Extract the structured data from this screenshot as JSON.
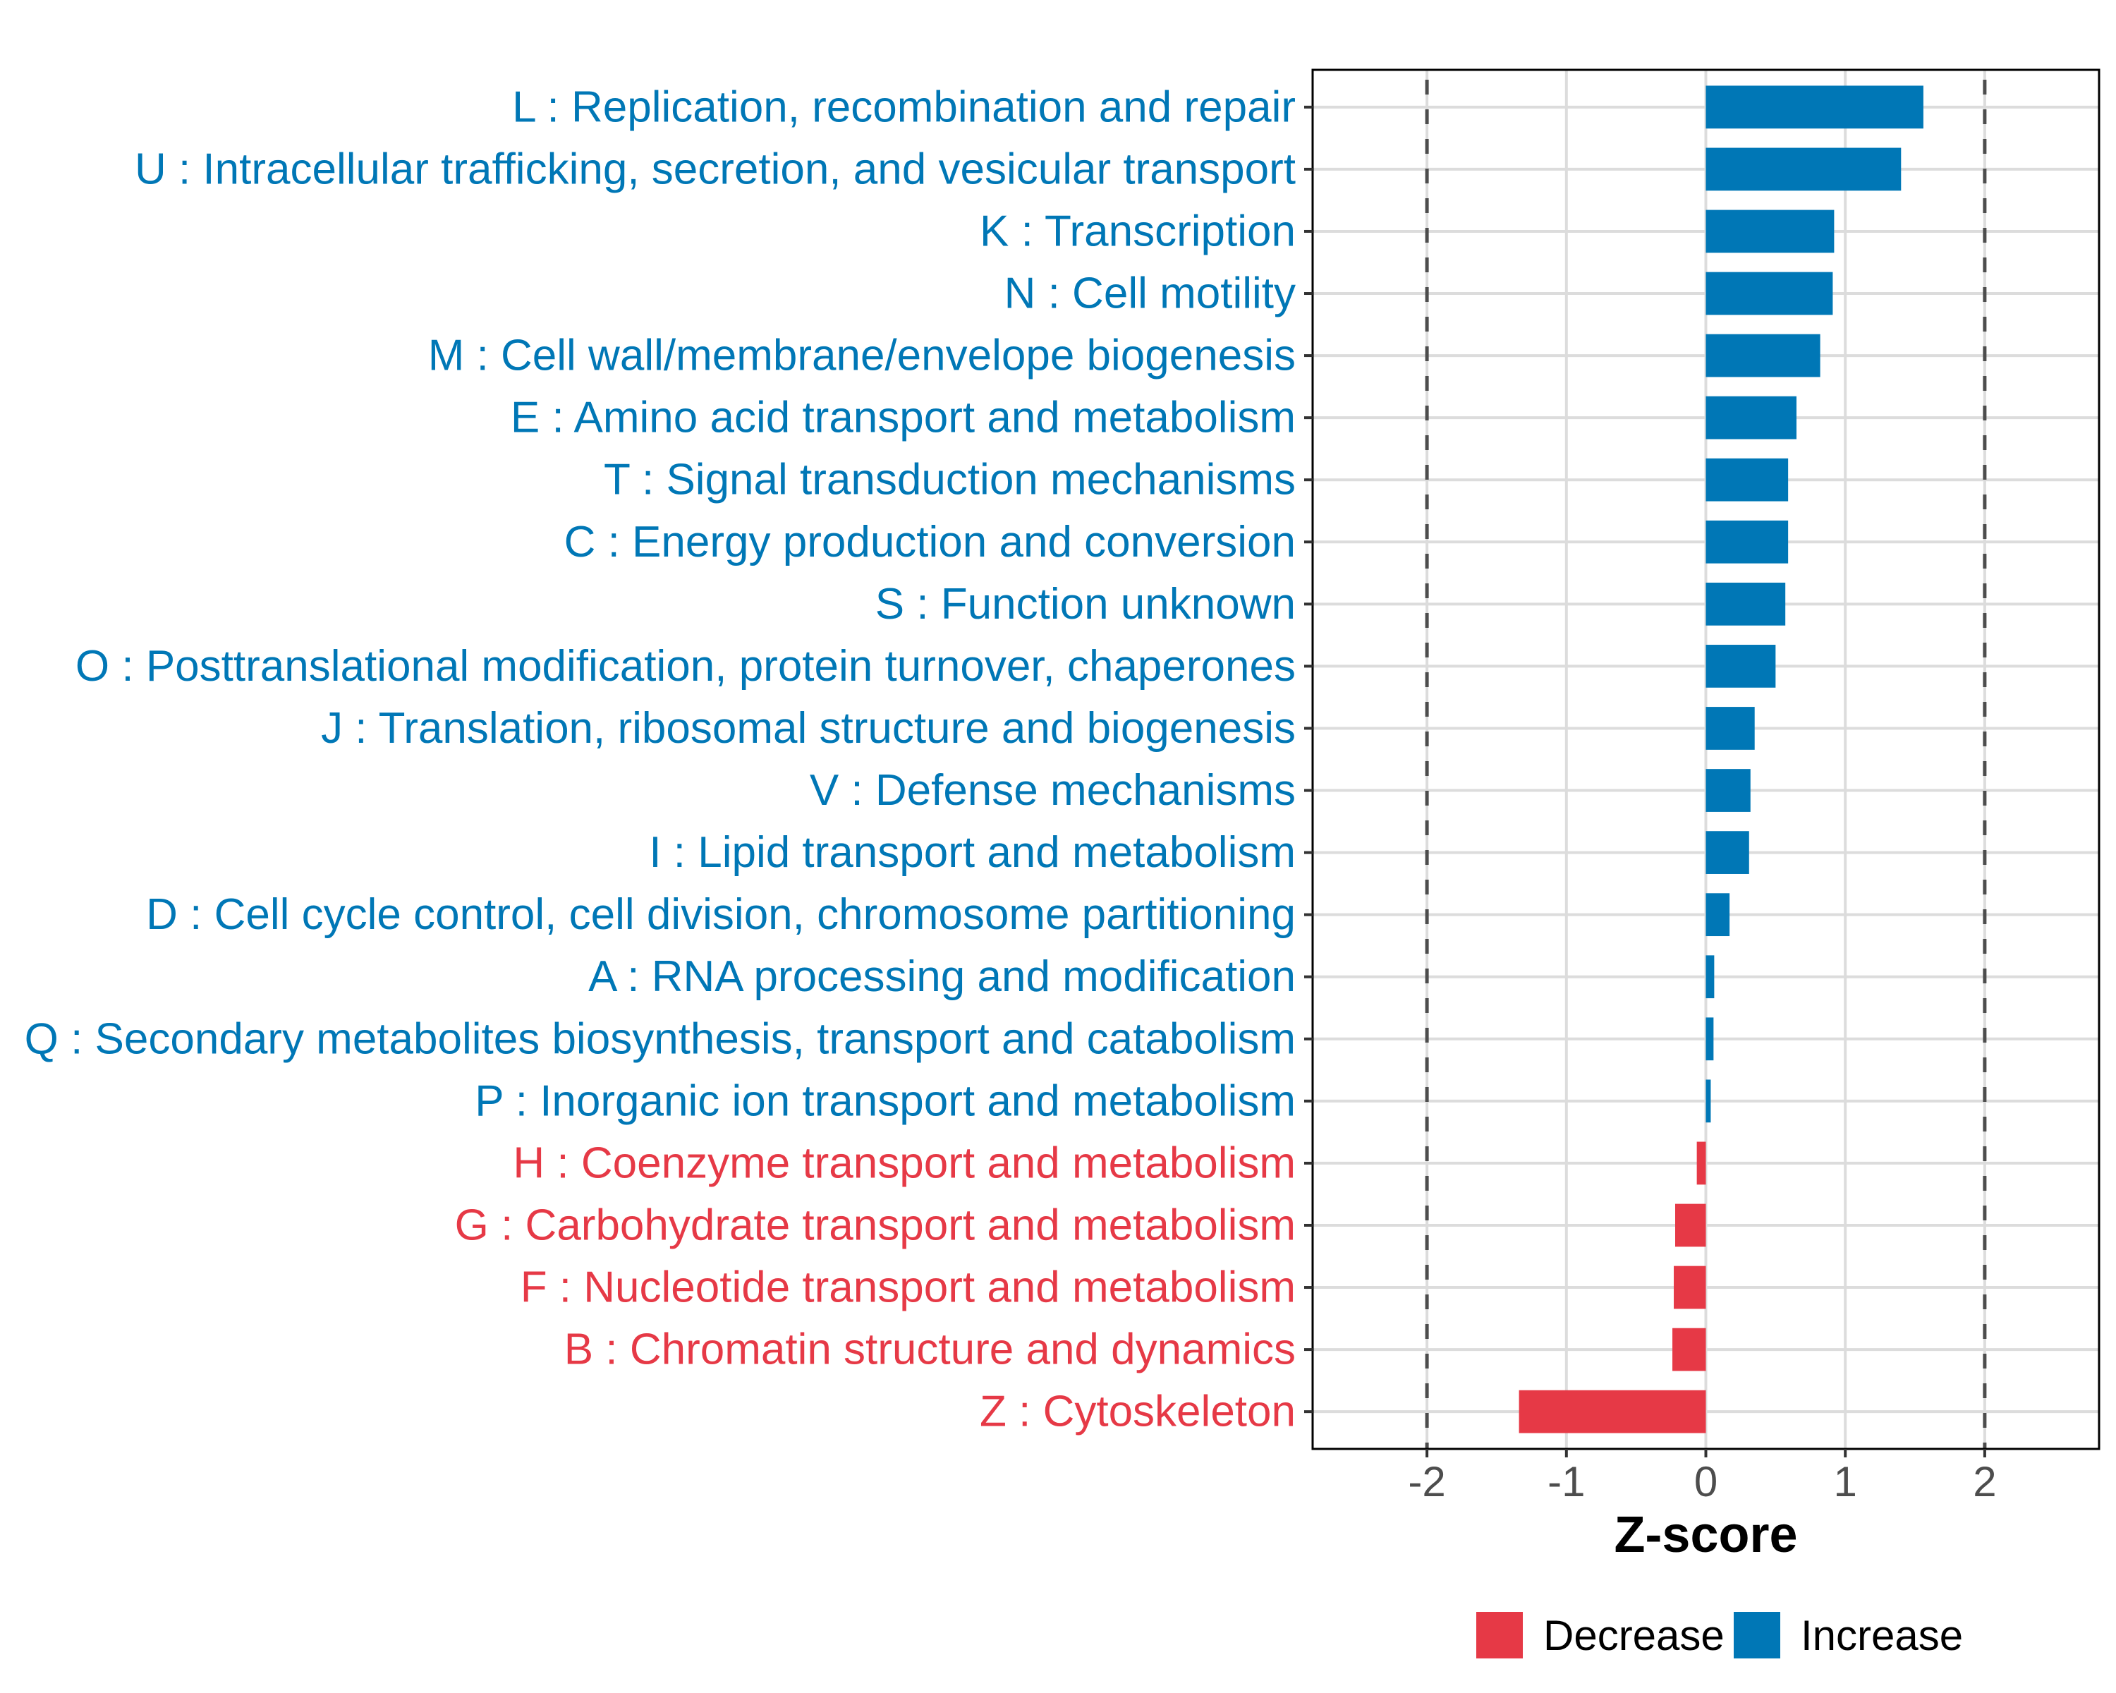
{
  "chart_data": {
    "type": "bar",
    "orientation": "horizontal",
    "title": "",
    "xlabel": "Z-score",
    "ylabel": "",
    "xlim": [
      -2.82,
      2.82
    ],
    "xticks": [
      -2,
      -1,
      0,
      1,
      2
    ],
    "xtick_labels": [
      "-2",
      "-1",
      "0",
      "1",
      "2"
    ],
    "reference_lines": [
      {
        "x": -2,
        "style": "dashed"
      },
      {
        "x": 2,
        "style": "dashed"
      }
    ],
    "grid": true,
    "legend_position": "bottom",
    "colors": {
      "Decrease": "#E63946",
      "Increase": "#0077B6"
    },
    "legend": [
      {
        "label": "Decrease",
        "color": "#E63946"
      },
      {
        "label": "Increase",
        "color": "#0077B6"
      }
    ],
    "categories": [
      "L : Replication, recombination and repair",
      "U : Intracellular trafficking, secretion, and vesicular transport",
      "K : Transcription",
      "N : Cell motility",
      "M : Cell wall/membrane/envelope biogenesis",
      "E : Amino acid transport and metabolism",
      "T : Signal transduction mechanisms",
      "C : Energy production and conversion",
      "S : Function unknown",
      "O : Posttranslational modification, protein turnover, chaperones",
      "J : Translation, ribosomal structure and biogenesis",
      "V : Defense mechanisms",
      "I : Lipid transport and metabolism",
      "D : Cell cycle control, cell division, chromosome partitioning",
      "A : RNA processing and modification",
      "Q : Secondary metabolites biosynthesis, transport and catabolism",
      "P : Inorganic ion transport and metabolism",
      "H : Coenzyme transport and metabolism",
      "G : Carbohydrate transport and metabolism",
      "F : Nucleotide transport and metabolism",
      "B : Chromatin structure and dynamics",
      "Z : Cytoskeleton"
    ],
    "values": [
      1.56,
      1.4,
      0.92,
      0.91,
      0.82,
      0.65,
      0.59,
      0.59,
      0.57,
      0.5,
      0.35,
      0.32,
      0.31,
      0.17,
      0.06,
      0.055,
      0.035,
      -0.065,
      -0.22,
      -0.23,
      -0.24,
      -1.34
    ],
    "groups": [
      "Increase",
      "Increase",
      "Increase",
      "Increase",
      "Increase",
      "Increase",
      "Increase",
      "Increase",
      "Increase",
      "Increase",
      "Increase",
      "Increase",
      "Increase",
      "Increase",
      "Increase",
      "Increase",
      "Increase",
      "Decrease",
      "Decrease",
      "Decrease",
      "Decrease",
      "Decrease"
    ]
  }
}
